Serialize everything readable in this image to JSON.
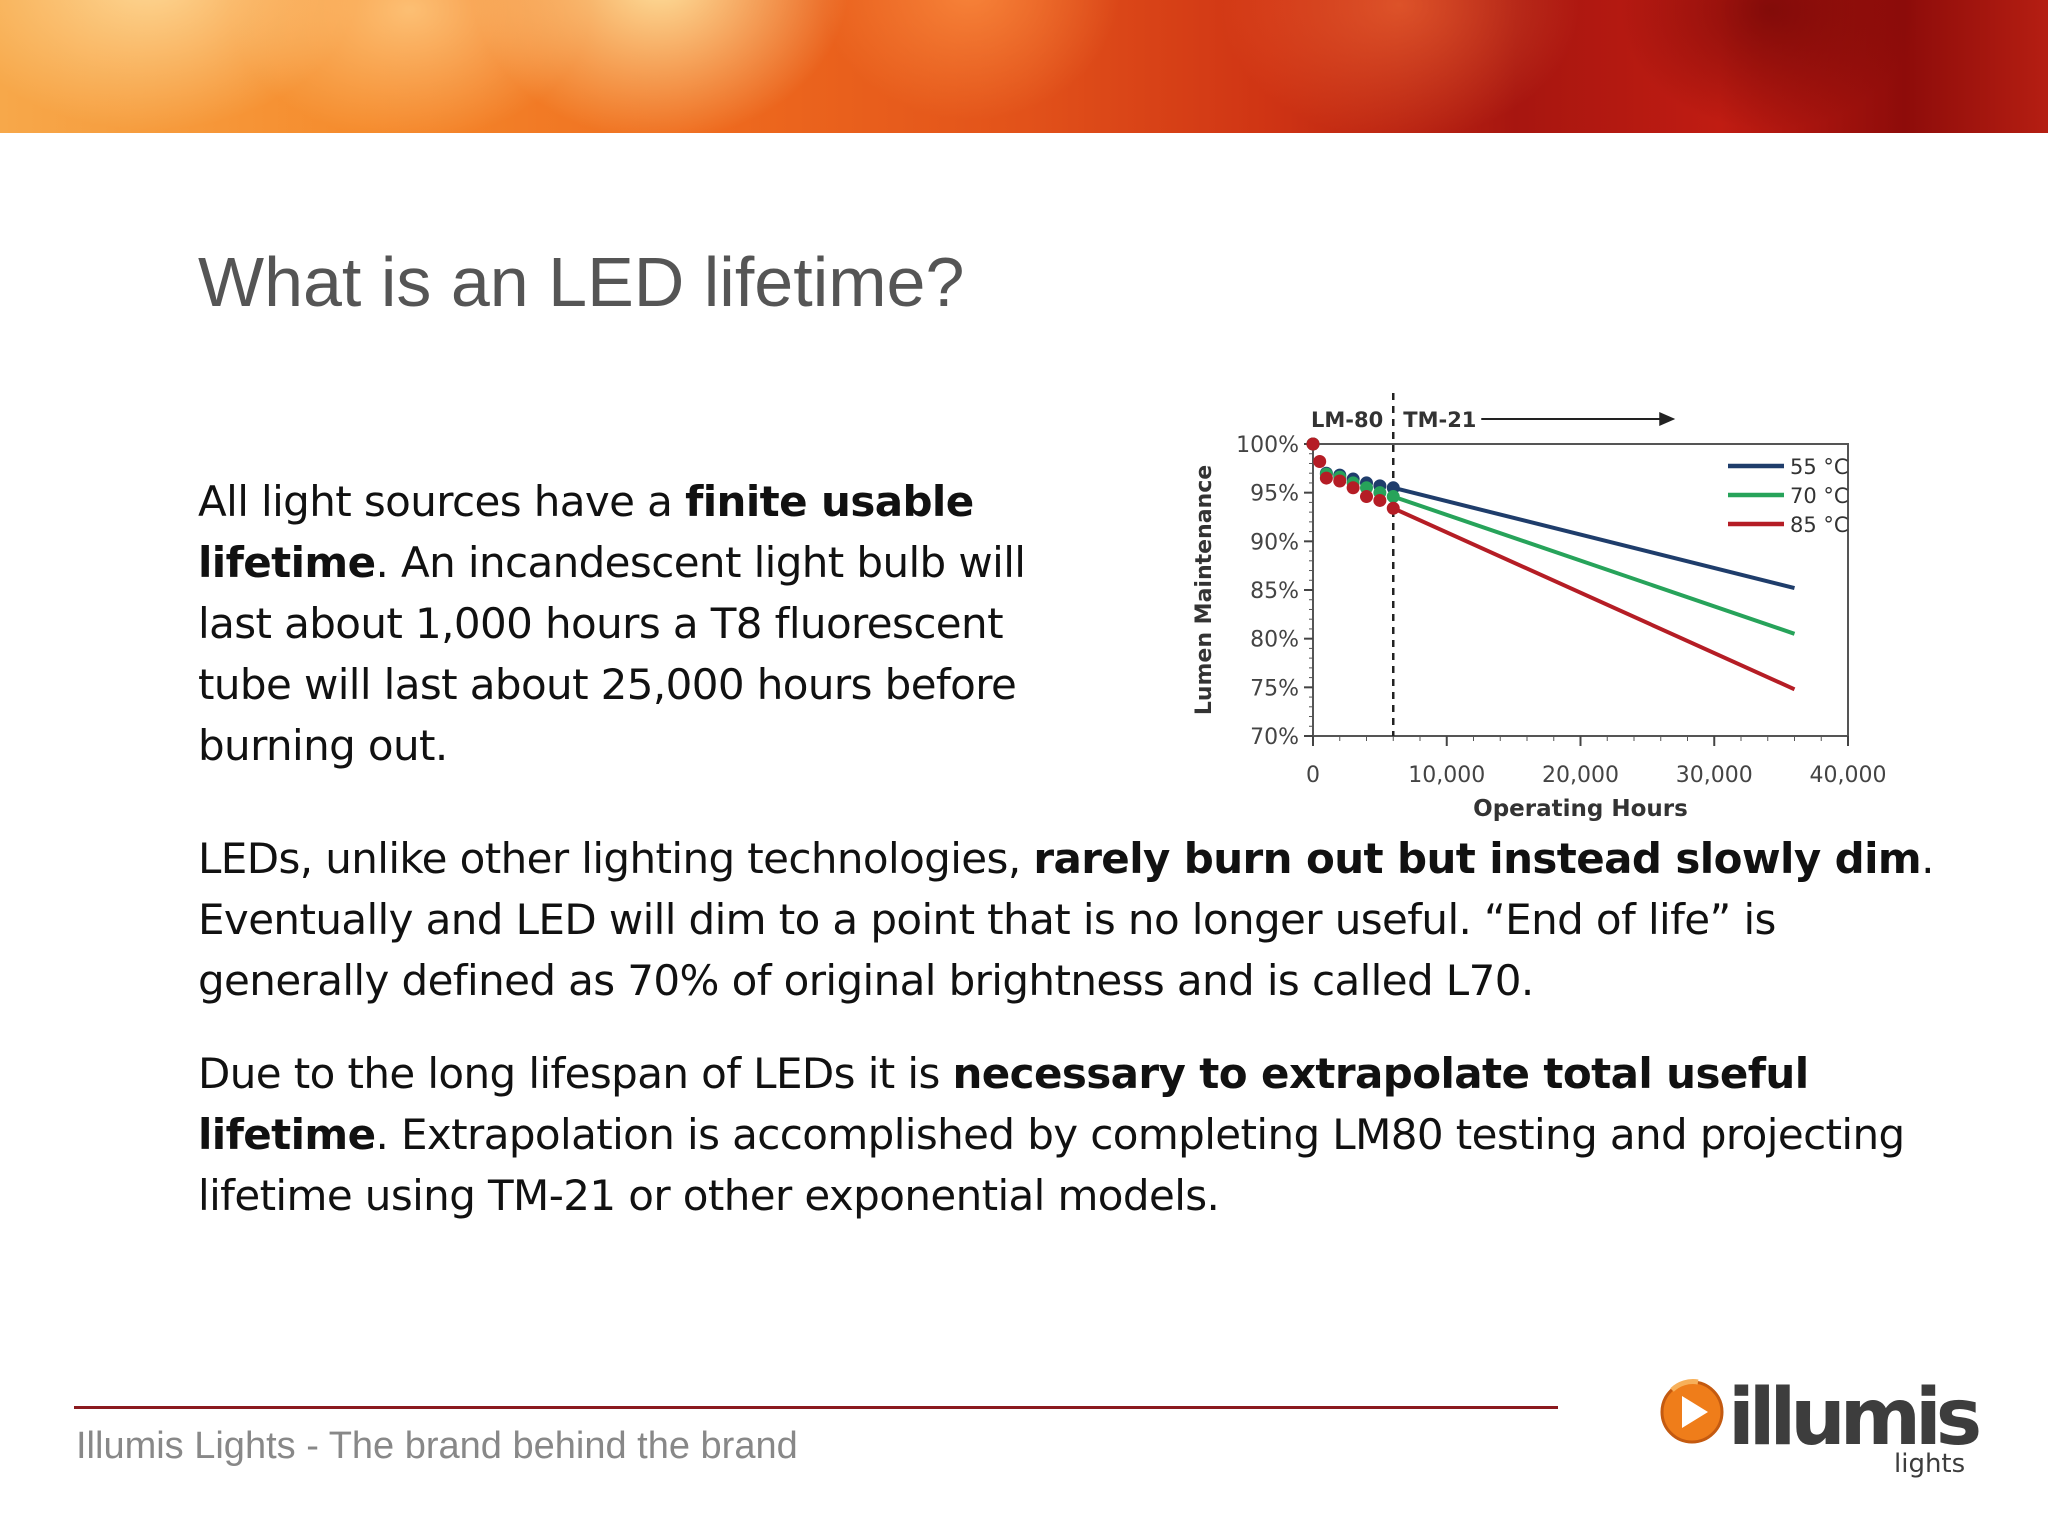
{
  "slide": {
    "title": "What is an LED lifetime?",
    "paragraphs": [
      [
        {
          "t": "All light sources have a "
        },
        {
          "t": "finite usable lifetime",
          "b": true
        },
        {
          "t": ". An incandescent light bulb will last about 1,000 hours a T8 fluorescent tube will last about 25,000 hours before burning out."
        }
      ],
      [
        {
          "t": "LEDs, unlike other lighting technologies, "
        },
        {
          "t": "rarely burn out but instead slowly dim",
          "b": true
        },
        {
          "t": ". Eventually and LED will dim to a point that is no longer useful. “End of life” is generally defined as 70% of original brightness and is called L70."
        }
      ],
      [
        {
          "t": "Due to the long lifespan of LEDs it is "
        },
        {
          "t": "necessary to extrapolate total useful lifetime",
          "b": true
        },
        {
          "t": ". Extrapolation is accomplished by completing LM80 testing and projecting lifetime using TM-21 or other exponential models."
        }
      ]
    ]
  },
  "footer": {
    "text": "Illumis Lights - The brand behind the brand"
  },
  "logo": {
    "wordmark": "illumis",
    "sub": "lights"
  },
  "chart_data": {
    "type": "line",
    "xlabel": "Operating Hours",
    "ylabel": "Lumen Maintenance",
    "xlim": [
      0,
      40000
    ],
    "ylim": [
      70,
      100
    ],
    "x_ticks": [
      "0",
      "10,000",
      "20,000",
      "30,000",
      "40,000"
    ],
    "y_ticks": [
      "100%",
      "95%",
      "90%",
      "85%",
      "80%",
      "75%",
      "70%"
    ],
    "annotations": {
      "left": "LM-80",
      "right": "TM-21",
      "divider_x": 6000
    },
    "legend_position": "top-right",
    "series": [
      {
        "name": "55 °C",
        "color": "#1f3d6b",
        "points_x": [
          0,
          1000,
          2000,
          3000,
          4000,
          5000,
          6000
        ],
        "points_y": [
          100,
          97.0,
          96.8,
          96.4,
          96.0,
          95.7,
          95.5
        ],
        "projection": [
          [
            6000,
            95.5
          ],
          [
            36000,
            85.2
          ]
        ]
      },
      {
        "name": "70 °C",
        "color": "#27a35a",
        "points_x": [
          0,
          1000,
          2000,
          3000,
          4000,
          5000,
          6000
        ],
        "points_y": [
          100,
          96.9,
          96.6,
          96.0,
          95.5,
          95.0,
          94.6
        ],
        "projection": [
          [
            6000,
            94.6
          ],
          [
            36000,
            80.5
          ]
        ]
      },
      {
        "name": "85 °C",
        "color": "#b51d25",
        "points_x": [
          0,
          500,
          1000,
          2000,
          3000,
          4000,
          5000,
          6000
        ],
        "points_y": [
          100,
          98.2,
          96.5,
          96.2,
          95.5,
          94.6,
          94.2,
          93.4
        ],
        "projection": [
          [
            6000,
            93.4
          ],
          [
            36000,
            74.8
          ]
        ]
      }
    ]
  },
  "colors": {
    "accent": "#8b1a1f",
    "logo_orange": "#ef7d1a",
    "logo_dark": "#3d3d3d"
  }
}
